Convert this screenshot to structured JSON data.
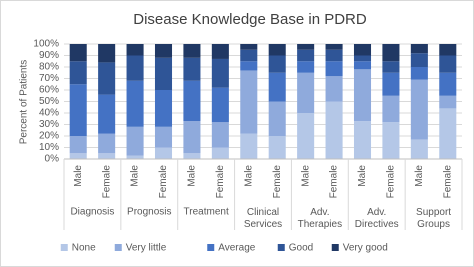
{
  "chart_data": {
    "type": "stacked_bar_percent",
    "title": "Disease Knowledge Base in PDRD",
    "y_label": "Percent of Patients",
    "categories": [
      "Male",
      "Female",
      "Male",
      "Female",
      "Male",
      "Female",
      "Male",
      "Female",
      "Male",
      "Female",
      "Male",
      "Female",
      "Male",
      "Female"
    ],
    "groups": [
      "Diagnosis",
      "Prognosis",
      "Treatment",
      "Clinical Services",
      "Adv. Therapies",
      "Adv. Directives",
      "Support Groups"
    ],
    "series": [
      {
        "name": "None",
        "color": "#b4c7e7",
        "values": [
          5,
          5,
          3,
          10,
          5,
          10,
          22,
          20,
          40,
          50,
          33,
          32,
          17,
          44
        ]
      },
      {
        "name": "Very little",
        "color": "#8faadc",
        "values": [
          15,
          17,
          25,
          18,
          28,
          22,
          55,
          30,
          35,
          22,
          45,
          23,
          52,
          11
        ]
      },
      {
        "name": "Average",
        "color": "#4472c4",
        "values": [
          45,
          34,
          40,
          32,
          35,
          30,
          8,
          25,
          10,
          13,
          7,
          20,
          11,
          20
        ]
      },
      {
        "name": "Good",
        "color": "#2f5597",
        "values": [
          20,
          28,
          22,
          28,
          20,
          25,
          10,
          15,
          10,
          10,
          5,
          10,
          12,
          15
        ]
      },
      {
        "name": "Very good",
        "color": "#203864",
        "values": [
          15,
          16,
          10,
          12,
          12,
          13,
          5,
          10,
          5,
          5,
          10,
          15,
          8,
          10
        ]
      }
    ],
    "ylim": [
      0,
      100
    ],
    "yticks": [
      {
        "value": 0,
        "label": "0%"
      },
      {
        "value": 10,
        "label": "10%"
      },
      {
        "value": 20,
        "label": "20%"
      },
      {
        "value": 30,
        "label": "30%"
      },
      {
        "value": 40,
        "label": "40%"
      },
      {
        "value": 50,
        "label": "50%"
      },
      {
        "value": 60,
        "label": "60%"
      },
      {
        "value": 70,
        "label": "70%"
      },
      {
        "value": 80,
        "label": "80%"
      },
      {
        "value": 90,
        "label": "90%"
      },
      {
        "value": 100,
        "label": "100%"
      }
    ],
    "grid": true,
    "legend": "bottom"
  }
}
